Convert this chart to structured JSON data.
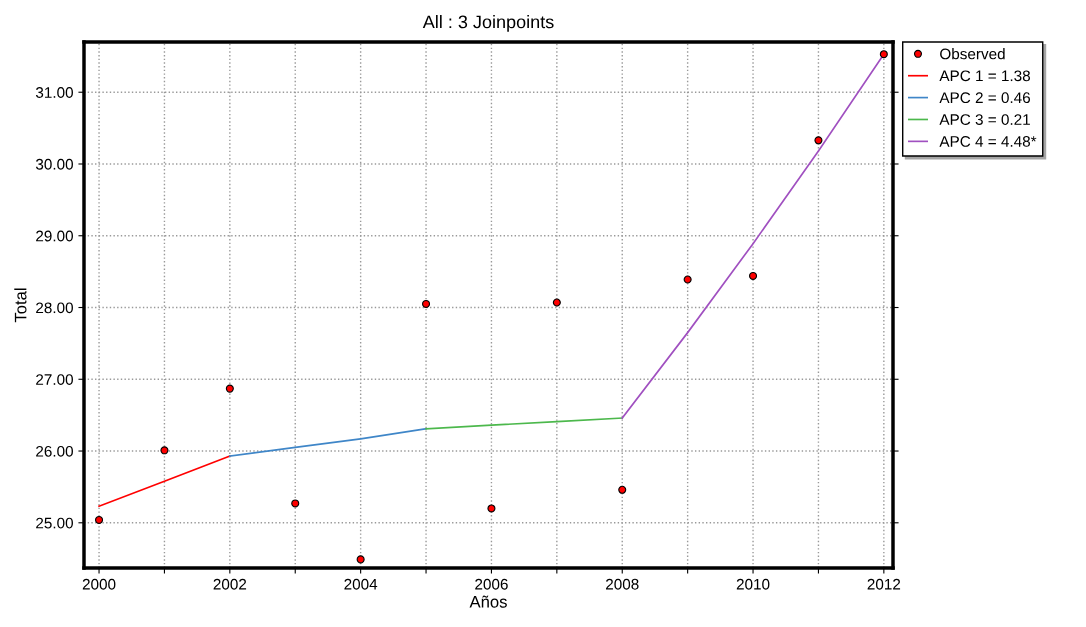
{
  "chart_data": {
    "type": "line",
    "title": "All : 3 Joinpoints",
    "xlabel": "Años",
    "ylabel": "Total",
    "xlim": [
      1999.77,
      2012.14
    ],
    "ylim": [
      24.37,
      31.7
    ],
    "xticks": [
      2000,
      {
        "value": 2001,
        "label": null
      },
      2002,
      {
        "value": 2003,
        "label": null
      },
      2004,
      {
        "value": 2005,
        "label": null
      },
      2006,
      {
        "value": 2007,
        "label": null
      },
      2008,
      {
        "value": 2009,
        "label": null
      },
      2010,
      {
        "value": 2011,
        "label": null
      },
      2012
    ],
    "yticks": [
      {
        "value": 25,
        "label": "25.00"
      },
      {
        "value": 26,
        "label": "26.00"
      },
      {
        "value": 27,
        "label": "27.00"
      },
      {
        "value": 28,
        "label": "28.00"
      },
      {
        "value": 29,
        "label": "29.00"
      },
      {
        "value": 30,
        "label": "30.00"
      },
      {
        "value": 31,
        "label": "31.00"
      }
    ],
    "grid": true,
    "legend": "top right",
    "series": [
      {
        "name": "Observed",
        "type": "scatter",
        "marker": "circle",
        "color": "#ff0000",
        "x": [
          2000,
          2001,
          2002,
          2003,
          2004,
          2005,
          2006,
          2007,
          2008,
          2009,
          2010,
          2011,
          2012
        ],
        "values": [
          25.04,
          26.01,
          26.87,
          25.27,
          24.49,
          28.05,
          25.2,
          28.07,
          25.46,
          28.39,
          28.44,
          30.33,
          31.53
        ]
      },
      {
        "name": "APC 1 = 1.38",
        "color": "#ff0000",
        "x": [
          2000,
          2001,
          2002
        ],
        "values": [
          25.23,
          25.58,
          25.93
        ]
      },
      {
        "name": "APC 2 = 0.46",
        "color": "#3f86c8",
        "x": [
          2002,
          2003,
          2004,
          2005
        ],
        "values": [
          25.93,
          26.05,
          26.17,
          26.31
        ]
      },
      {
        "name": "APC 3 = 0.21",
        "color": "#4cb84c",
        "x": [
          2005,
          2006,
          2007,
          2008
        ],
        "values": [
          26.31,
          26.36,
          26.41,
          26.46
        ]
      },
      {
        "name": "APC 4 = 4.48*",
        "color": "#a050c0",
        "x": [
          2008,
          2009,
          2010,
          2011,
          2012
        ],
        "values": [
          26.46,
          27.65,
          28.89,
          30.18,
          31.53
        ]
      }
    ]
  }
}
